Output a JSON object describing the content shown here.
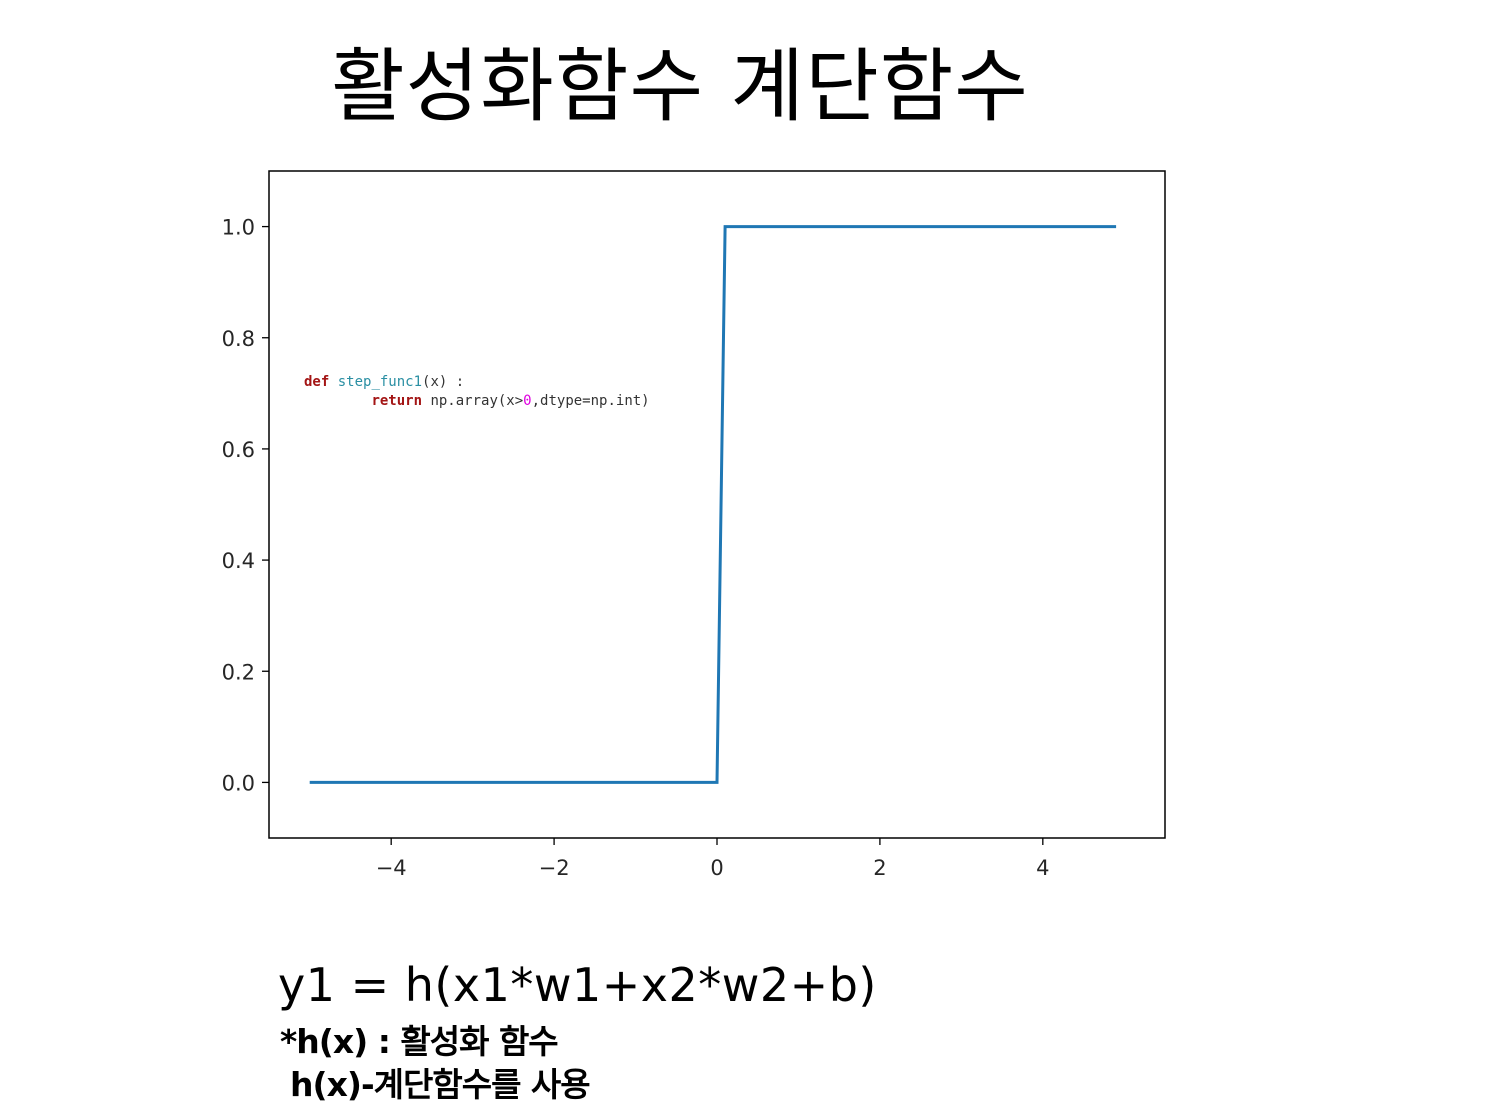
{
  "slide": {
    "title": "활성화함수 계단함수",
    "formula": "y1 = h(x1*w1+x2*w2+b)",
    "note1": "*h(x) : 활성화 함수",
    "note2": "h(x)-계단함수를 사용"
  },
  "code": {
    "line1_kw": "def",
    "line1_fn": "step_func1",
    "line1_rest": "(x) :",
    "line2_kw": "return",
    "line2_a": " np.array(x>",
    "line2_num": "0",
    "line2_b": ",dtype=np.int)"
  },
  "chart_data": {
    "type": "line",
    "title": "",
    "xlabel": "",
    "ylabel": "",
    "xlim": [
      -5.5,
      5.5
    ],
    "ylim": [
      -0.1,
      1.1
    ],
    "xticks": [
      -4,
      -2,
      0,
      2,
      4
    ],
    "xtick_labels": [
      "−4",
      "−2",
      "0",
      "2",
      "4"
    ],
    "yticks": [
      0.0,
      0.2,
      0.4,
      0.6,
      0.8,
      1.0
    ],
    "ytick_labels": [
      "0.0",
      "0.2",
      "0.4",
      "0.6",
      "0.8",
      "1.0"
    ],
    "grid": false,
    "series": [
      {
        "color": "#1f77b4",
        "x": [
          -5.0,
          0.0,
          0.1,
          4.9
        ],
        "y": [
          0,
          0,
          1,
          1
        ]
      }
    ]
  }
}
